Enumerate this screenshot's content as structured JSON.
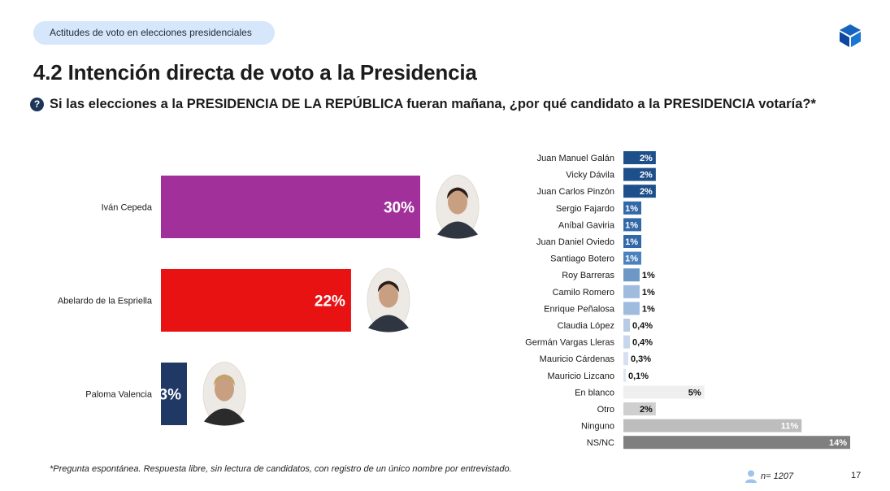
{
  "header": {
    "section_pill": "Actitudes de voto en elecciones presidenciales",
    "title": "4.2 Intención directa de voto a la Presidencia",
    "question": "Si las elecciones a la PRESIDENCIA DE LA REPÚBLICA fueran mañana, ¿por qué candidato a la PRESIDENCIA votaría?*",
    "question_icon": "question-circle-icon",
    "logo_icon": "cube-logo-icon"
  },
  "footer": {
    "footnote": "*Pregunta espontánea. Respuesta libre, sin lectura de candidatos, con registro de un único nombre por entrevistado.",
    "sample_size": "n= 1207",
    "sample_icon": "person-icon",
    "page_number": "17"
  },
  "chart_data": [
    {
      "type": "bar",
      "orientation": "horizontal",
      "categories": [
        "Iván Cepeda",
        "Abelardo de la Espriella",
        "Paloma Valencia"
      ],
      "values": [
        30,
        22,
        3
      ],
      "labels": [
        "30%",
        "22%",
        "3%"
      ],
      "colors": [
        "#a1309b",
        "#e81213",
        "#1f3864"
      ],
      "candidate_photos": true,
      "xlim": [
        0,
        30
      ]
    },
    {
      "type": "bar",
      "orientation": "horizontal",
      "categories": [
        "Juan Manuel Galán",
        "Vicky Dávila",
        "Juan Carlos Pinzón",
        "Sergio Fajardo",
        "Aníbal Gaviria",
        "Juan Daniel Oviedo",
        "Santiago Botero",
        "Roy Barreras",
        "Camilo Romero",
        "Enrique Peñalosa",
        "Claudia López",
        "Germán Vargas Lleras",
        "Mauricio Cárdenas",
        "Mauricio Lizcano",
        "En blanco",
        "Otro",
        "Ninguno",
        "NS/NC"
      ],
      "values": [
        2,
        2,
        2,
        1,
        1,
        1,
        1,
        1,
        1,
        1,
        0.4,
        0.4,
        0.3,
        0.1,
        5,
        2,
        11,
        14
      ],
      "labels": [
        "2%",
        "2%",
        "2%",
        "1%",
        "1%",
        "1%",
        "1%",
        "1%",
        "1%",
        "1%",
        "0,4%",
        "0,4%",
        "0,3%",
        "0,1%",
        "5%",
        "2%",
        "11%",
        "14%"
      ],
      "colors": [
        "#1d4f8a",
        "#1d4f8a",
        "#1d4f8a",
        "#3169a8",
        "#3169a8",
        "#3169a8",
        "#4b82bd",
        "#6d97c5",
        "#9fbbde",
        "#9fbbde",
        "#b7cbe6",
        "#c7d6ec",
        "#d5e0f0",
        "#dde6f3",
        "#efefef",
        "#cfcfcf",
        "#bdbdbd",
        "#7f7f7f"
      ],
      "label_inside": [
        true,
        true,
        true,
        true,
        true,
        true,
        true,
        false,
        false,
        false,
        false,
        false,
        false,
        false,
        true,
        true,
        true,
        true
      ],
      "label_colors": [
        "#ffffff",
        "#ffffff",
        "#ffffff",
        "#ffffff",
        "#ffffff",
        "#ffffff",
        "#ffffff",
        "#111111",
        "#111111",
        "#111111",
        "#111111",
        "#111111",
        "#111111",
        "#111111",
        "#111111",
        "#111111",
        "#ffffff",
        "#ffffff"
      ],
      "xlim": [
        0,
        14
      ]
    }
  ]
}
